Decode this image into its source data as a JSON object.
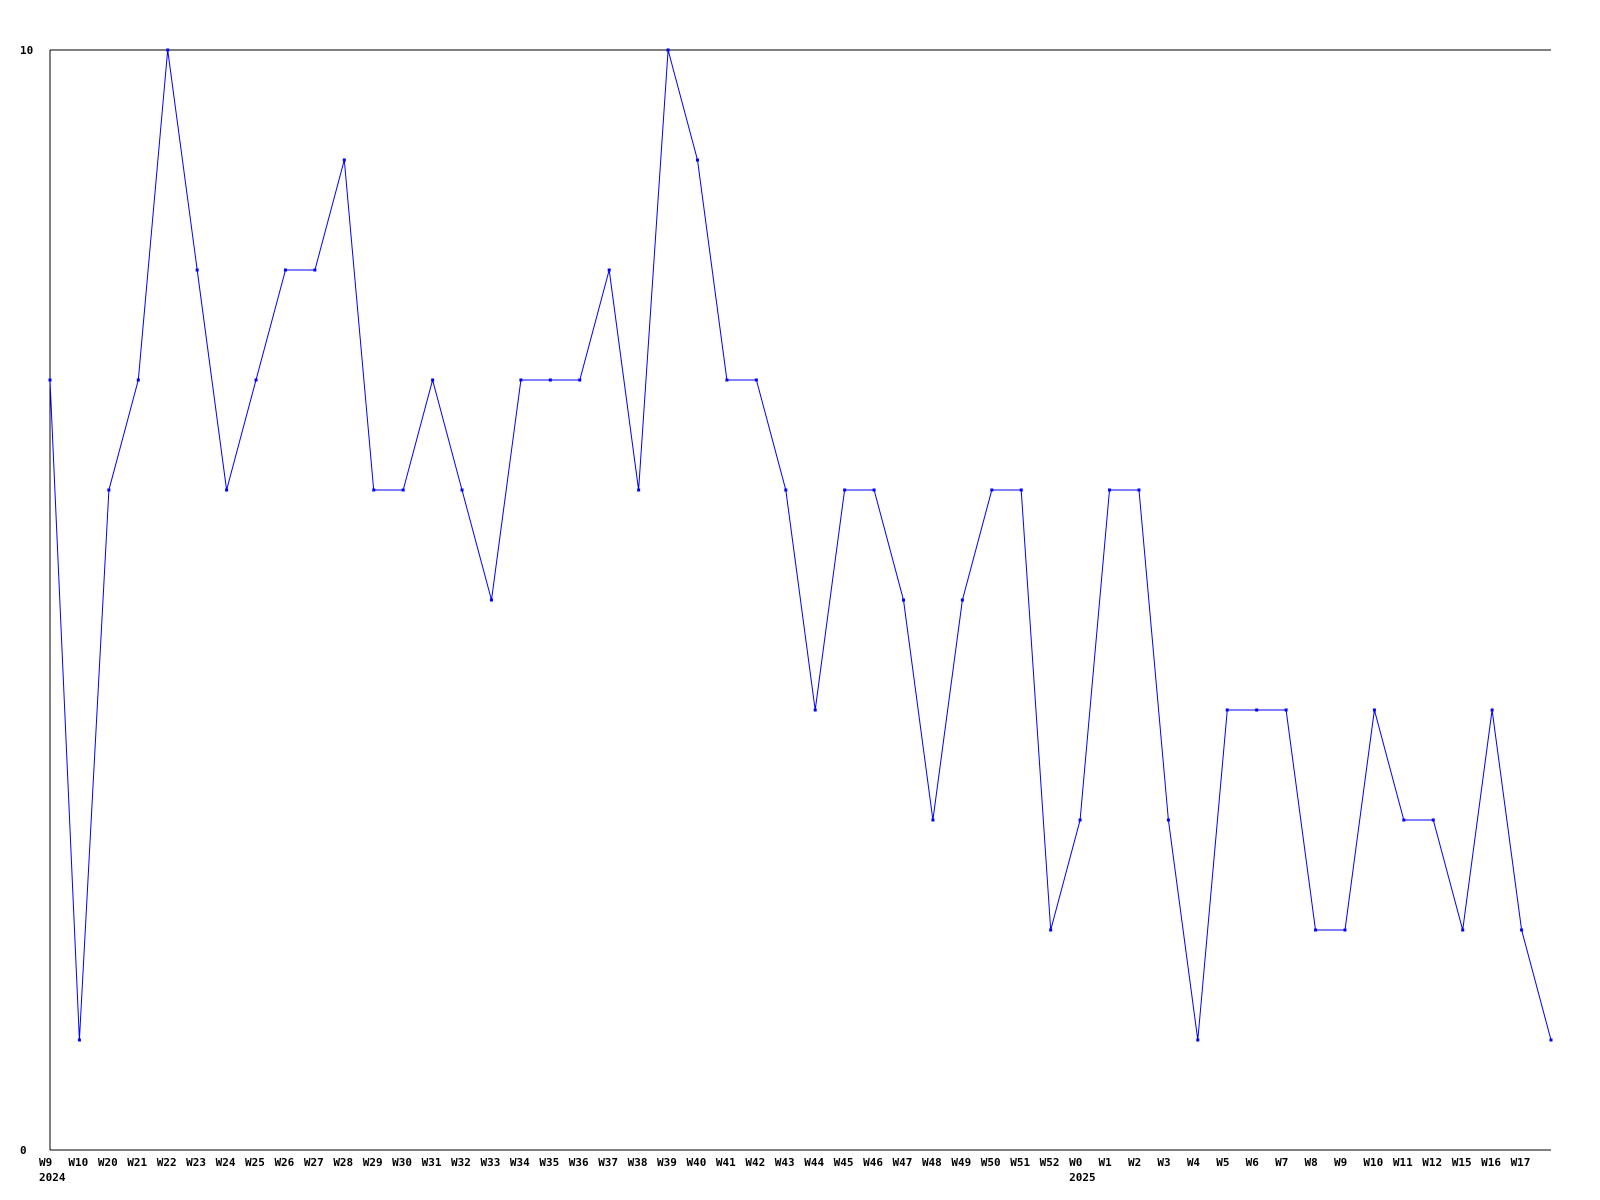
{
  "chart_data": {
    "type": "line",
    "title": "",
    "xlabel": "",
    "ylabel": "",
    "ylim": [
      0,
      10
    ],
    "yticks": [
      "0",
      "10"
    ],
    "grid": false,
    "line_color": "#0000ff",
    "x": [
      "W9",
      "W10",
      "W20",
      "W21",
      "W22",
      "W23",
      "W24",
      "W25",
      "W26",
      "W27",
      "W28",
      "W29",
      "W30",
      "W31",
      "W32",
      "W33",
      "W34",
      "W35",
      "W36",
      "W37",
      "W38",
      "W39",
      "W40",
      "W41",
      "W42",
      "W43",
      "W44",
      "W45",
      "W46",
      "W47",
      "W48",
      "W49",
      "W50",
      "W51",
      "W52",
      "W0",
      "W1",
      "W2",
      "W3",
      "W4",
      "W5",
      "W6",
      "W7",
      "W8",
      "W9",
      "W10",
      "W11",
      "W12",
      "W15",
      "W16",
      "W17",
      ""
    ],
    "year_labels": [
      {
        "index": 0,
        "text": "2024"
      },
      {
        "index": 35,
        "text": "2025"
      }
    ],
    "series": [
      {
        "values": [
          7,
          1,
          6,
          7,
          10,
          8,
          6,
          7,
          8,
          8,
          9,
          6,
          6,
          7,
          6,
          5,
          7,
          7,
          7,
          8,
          6,
          10,
          9,
          7,
          7,
          6,
          4,
          6,
          6,
          5,
          3,
          5,
          6,
          6,
          2,
          3,
          6,
          6,
          3,
          1,
          4,
          4,
          4,
          2,
          2,
          4,
          3,
          3,
          2,
          4,
          2,
          1
        ]
      }
    ]
  }
}
